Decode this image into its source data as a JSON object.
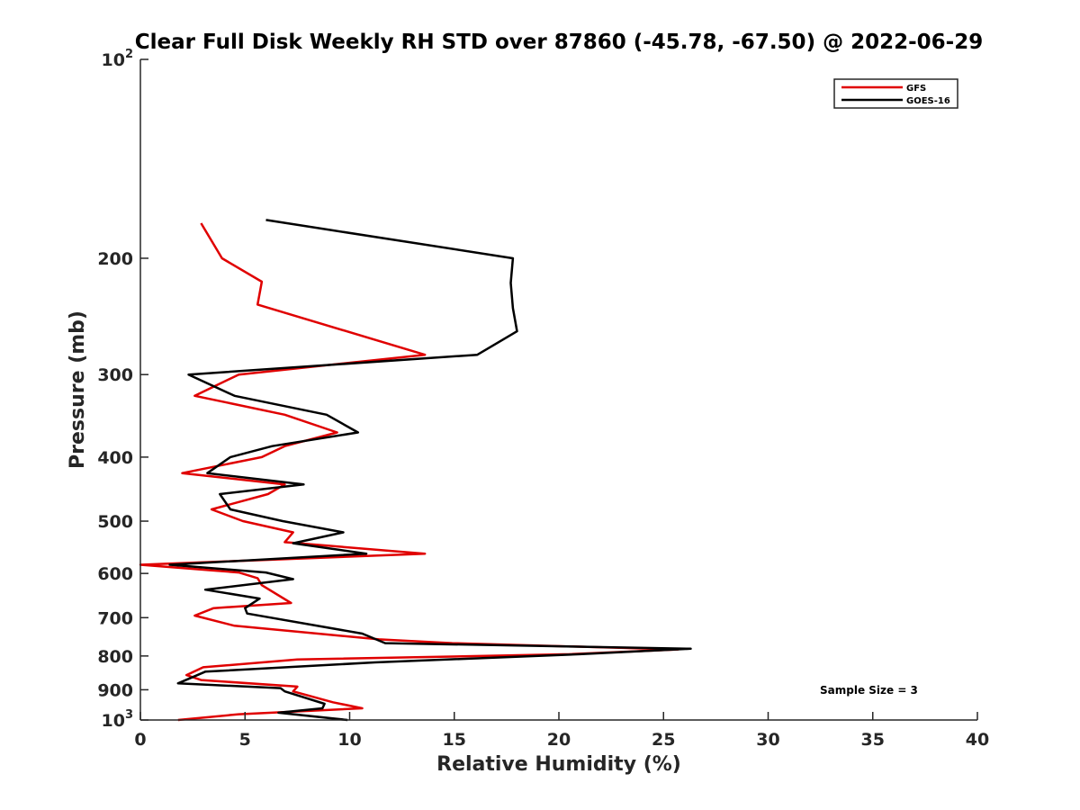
{
  "chart_data": {
    "type": "line",
    "title": "Clear Full Disk Weekly RH STD over 87860 (-45.78, -67.50) @ 2022-06-29",
    "xlabel": "Relative Humidity (%)",
    "ylabel": "Pressure (mb)",
    "xlim": [
      0,
      40
    ],
    "ylim": [
      1000,
      100
    ],
    "y_scale": "log-reversed",
    "grid": false,
    "legend_position": "top-right",
    "x_ticks": [
      "0",
      "5",
      "10",
      "15",
      "20",
      "25",
      "30",
      "35",
      "40"
    ],
    "y_ticks": [
      {
        "value": 100,
        "label": "10",
        "sup": "2"
      },
      {
        "value": 200,
        "label": "200",
        "sup": ""
      },
      {
        "value": 300,
        "label": "300",
        "sup": ""
      },
      {
        "value": 400,
        "label": "400",
        "sup": ""
      },
      {
        "value": 500,
        "label": "500",
        "sup": ""
      },
      {
        "value": 600,
        "label": "600",
        "sup": ""
      },
      {
        "value": 700,
        "label": "700",
        "sup": ""
      },
      {
        "value": 800,
        "label": "800",
        "sup": ""
      },
      {
        "value": 900,
        "label": "900",
        "sup": ""
      },
      {
        "value": 1000,
        "label": "10",
        "sup": "3"
      }
    ],
    "annotation": "Sample Size = 3",
    "series": [
      {
        "name": "GFS",
        "color": "#e00000",
        "points": [
          [
            2.9,
            177
          ],
          [
            3.9,
            200
          ],
          [
            5.8,
            217
          ],
          [
            5.6,
            235
          ],
          [
            13.6,
            280
          ],
          [
            4.7,
            300
          ],
          [
            2.6,
            323
          ],
          [
            6.9,
            345
          ],
          [
            9.4,
            367
          ],
          [
            6.9,
            385
          ],
          [
            5.8,
            400
          ],
          [
            2.0,
            423
          ],
          [
            6.9,
            440
          ],
          [
            6.1,
            455
          ],
          [
            3.4,
            480
          ],
          [
            4.9,
            500
          ],
          [
            7.3,
            520
          ],
          [
            6.9,
            538
          ],
          [
            13.6,
            560
          ],
          [
            0.0,
            582
          ],
          [
            4.7,
            598
          ],
          [
            5.6,
            610
          ],
          [
            5.8,
            625
          ],
          [
            7.2,
            665
          ],
          [
            3.5,
            677
          ],
          [
            2.6,
            695
          ],
          [
            4.5,
            720
          ],
          [
            11.4,
            755
          ],
          [
            14.9,
            765
          ],
          [
            25.7,
            782
          ],
          [
            20.5,
            795
          ],
          [
            7.5,
            810
          ],
          [
            3.0,
            832
          ],
          [
            2.2,
            855
          ],
          [
            2.9,
            870
          ],
          [
            7.5,
            890
          ],
          [
            7.3,
            905
          ],
          [
            9.2,
            940
          ],
          [
            10.6,
            960
          ],
          [
            4.7,
            980
          ],
          [
            1.8,
            1000
          ]
        ]
      },
      {
        "name": "GOES-16",
        "color": "#000000",
        "points": [
          [
            6.0,
            175
          ],
          [
            17.8,
            200
          ],
          [
            17.7,
            218
          ],
          [
            17.8,
            238
          ],
          [
            18.0,
            258
          ],
          [
            16.1,
            280
          ],
          [
            2.3,
            300
          ],
          [
            4.5,
            323
          ],
          [
            8.9,
            345
          ],
          [
            10.4,
            367
          ],
          [
            6.3,
            385
          ],
          [
            4.3,
            400
          ],
          [
            3.2,
            423
          ],
          [
            7.8,
            440
          ],
          [
            3.8,
            455
          ],
          [
            4.3,
            480
          ],
          [
            6.8,
            500
          ],
          [
            9.7,
            520
          ],
          [
            7.3,
            540
          ],
          [
            10.8,
            560
          ],
          [
            1.4,
            582
          ],
          [
            6.0,
            598
          ],
          [
            7.3,
            612
          ],
          [
            3.1,
            635
          ],
          [
            5.7,
            655
          ],
          [
            5.0,
            677
          ],
          [
            5.1,
            690
          ],
          [
            10.6,
            740
          ],
          [
            11.7,
            765
          ],
          [
            26.3,
            780
          ],
          [
            21.0,
            795
          ],
          [
            11.2,
            818
          ],
          [
            3.1,
            845
          ],
          [
            1.8,
            880
          ],
          [
            6.7,
            895
          ],
          [
            6.9,
            905
          ],
          [
            8.8,
            945
          ],
          [
            8.7,
            960
          ],
          [
            6.6,
            975
          ],
          [
            9.9,
            1000
          ]
        ]
      }
    ]
  }
}
